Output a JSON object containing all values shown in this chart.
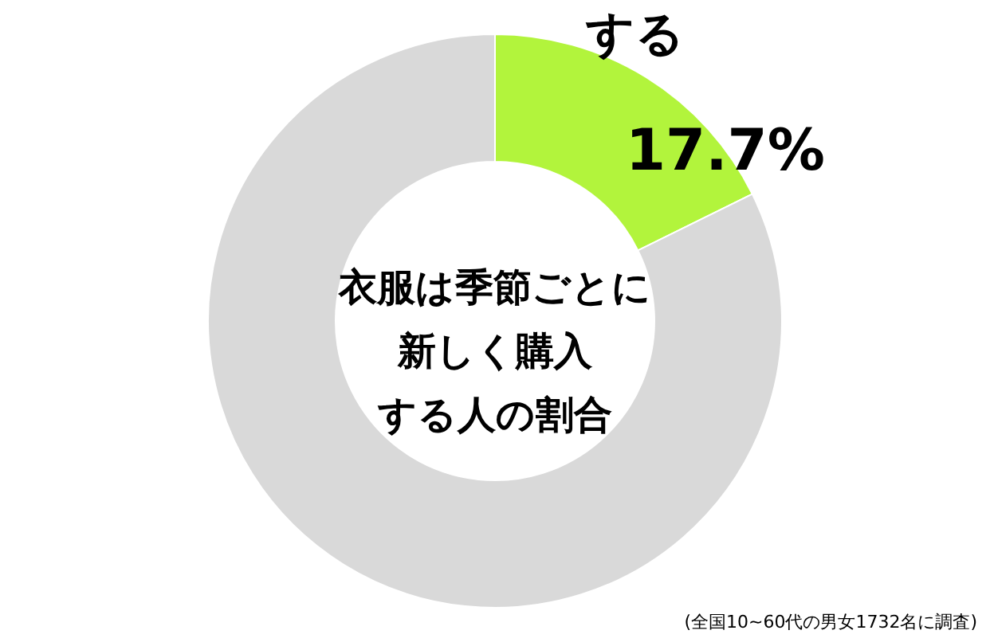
{
  "chart_data": {
    "type": "donut",
    "title": "衣服は季節ごとに新しく購入する人の割合",
    "categories": [
      "する",
      null
    ],
    "values": [
      17.7,
      82.3
    ],
    "colors": [
      "#b2f43c",
      "#d9d9d9"
    ],
    "value_labels": [
      "17.7%",
      null
    ],
    "annotations": [
      "(全国10~60代の男女1732名に調査)"
    ]
  }
}
